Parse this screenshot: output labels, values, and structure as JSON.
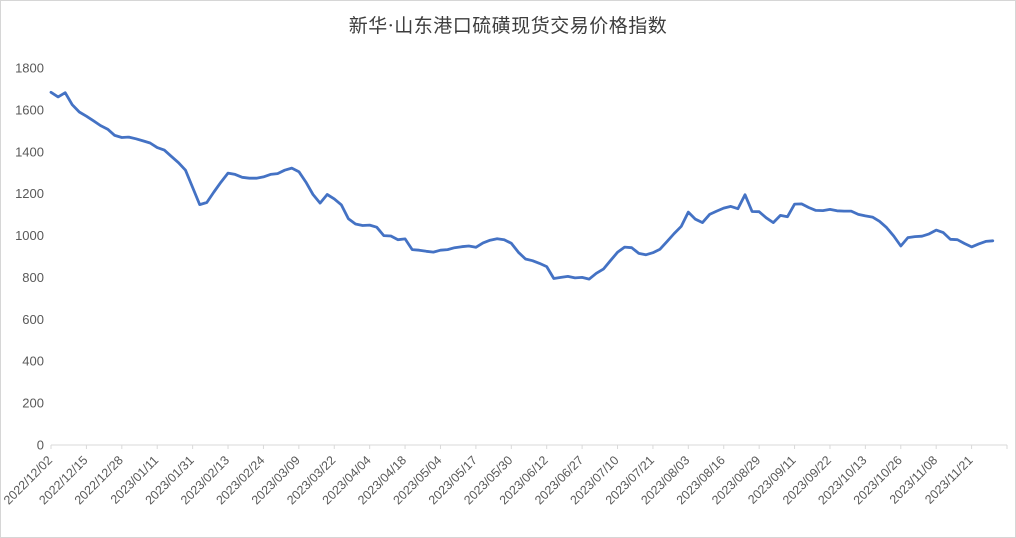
{
  "chart_data": {
    "type": "line",
    "title": "新华·山东港口硫磺现货交易价格指数",
    "legend": "none",
    "grid": false,
    "ylim": [
      0,
      1800
    ],
    "y_ticks": [
      0,
      200,
      400,
      600,
      800,
      1000,
      1200,
      1400,
      1600,
      1800
    ],
    "x_tick_labels": [
      "2022/12/02",
      "2022/12/15",
      "2022/12/28",
      "2023/01/11",
      "2023/01/31",
      "2023/02/13",
      "2023/02/24",
      "2023/03/09",
      "2023/03/22",
      "2023/04/04",
      "2023/04/18",
      "2023/05/04",
      "2023/05/17",
      "2023/05/30",
      "2023/06/12",
      "2023/06/27",
      "2023/07/10",
      "2023/07/21",
      "2023/08/03",
      "2023/08/16",
      "2023/08/29",
      "2023/09/11",
      "2023/09/22",
      "2023/10/13",
      "2023/10/26",
      "2023/11/08",
      "2023/11/21"
    ],
    "points_per_tick_interval": 5,
    "series": [
      {
        "name": "硫磺现货交易价格指数",
        "color": "#4472c4",
        "values": [
          1684,
          1662,
          1682,
          1625,
          1590,
          1570,
          1548,
          1525,
          1508,
          1478,
          1468,
          1470,
          1462,
          1452,
          1442,
          1420,
          1408,
          1378,
          1348,
          1312,
          1230,
          1148,
          1158,
          1208,
          1255,
          1298,
          1292,
          1278,
          1274,
          1274,
          1280,
          1292,
          1296,
          1312,
          1322,
          1305,
          1255,
          1196,
          1155,
          1196,
          1175,
          1147,
          1080,
          1055,
          1048,
          1050,
          1040,
          1000,
          998,
          980,
          984,
          933,
          930,
          925,
          921,
          930,
          933,
          942,
          947,
          950,
          944,
          965,
          978,
          985,
          980,
          963,
          920,
          888,
          880,
          867,
          852,
          795,
          800,
          805,
          798,
          800,
          792,
          820,
          840,
          880,
          920,
          945,
          942,
          915,
          908,
          918,
          935,
          972,
          1010,
          1044,
          1112,
          1078,
          1062,
          1101,
          1117,
          1131,
          1139,
          1128,
          1195,
          1115,
          1114,
          1085,
          1062,
          1096,
          1090,
          1150,
          1151,
          1134,
          1120,
          1119,
          1125,
          1118,
          1117,
          1117,
          1101,
          1094,
          1088,
          1068,
          1038,
          998,
          950,
          990,
          995,
          997,
          1008,
          1026,
          1014,
          982,
          980,
          962,
          946,
          960,
          972,
          975
        ]
      }
    ],
    "axis_color": "#d9d9d9",
    "tick_label_color": "#595959",
    "background_color": "#ffffff"
  }
}
